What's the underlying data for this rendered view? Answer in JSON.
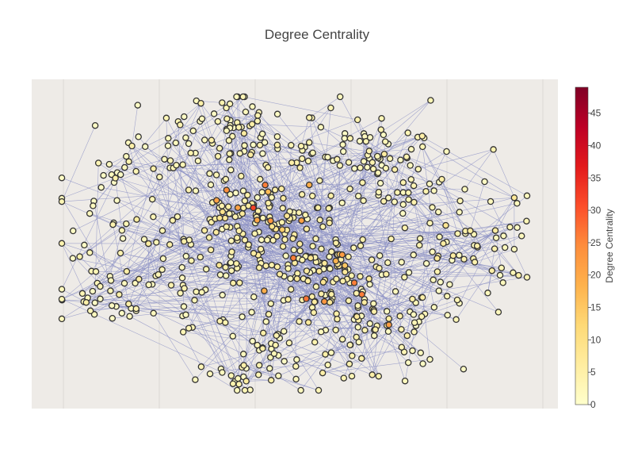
{
  "chart_data": {
    "type": "scatter",
    "subtype": "network-graph",
    "title": "Degree Centrality",
    "node_count_estimate": 750,
    "colorbar": {
      "title": "Degree Centrality",
      "range": [
        0,
        49
      ],
      "ticks": [
        0,
        5,
        10,
        15,
        20,
        25,
        30,
        35,
        40,
        45
      ],
      "tick_labels": [
        "0",
        "5",
        "10",
        "15",
        "20",
        "25",
        "30",
        "35",
        "40",
        "45"
      ],
      "colorscale": [
        "#ffffcc",
        "#ffeda0",
        "#fed976",
        "#feb24c",
        "#fd8d3c",
        "#fc4e2a",
        "#e31a1c",
        "#bd0026",
        "#800026"
      ]
    },
    "axes": {
      "x_ticks_shown": false,
      "y_ticks_shown": false,
      "grid": true
    },
    "colors": {
      "plot_background": "#eeebe7",
      "edge": "#8a8fc4",
      "node_outline": "#333333",
      "grid": "#dcd9d5"
    }
  }
}
